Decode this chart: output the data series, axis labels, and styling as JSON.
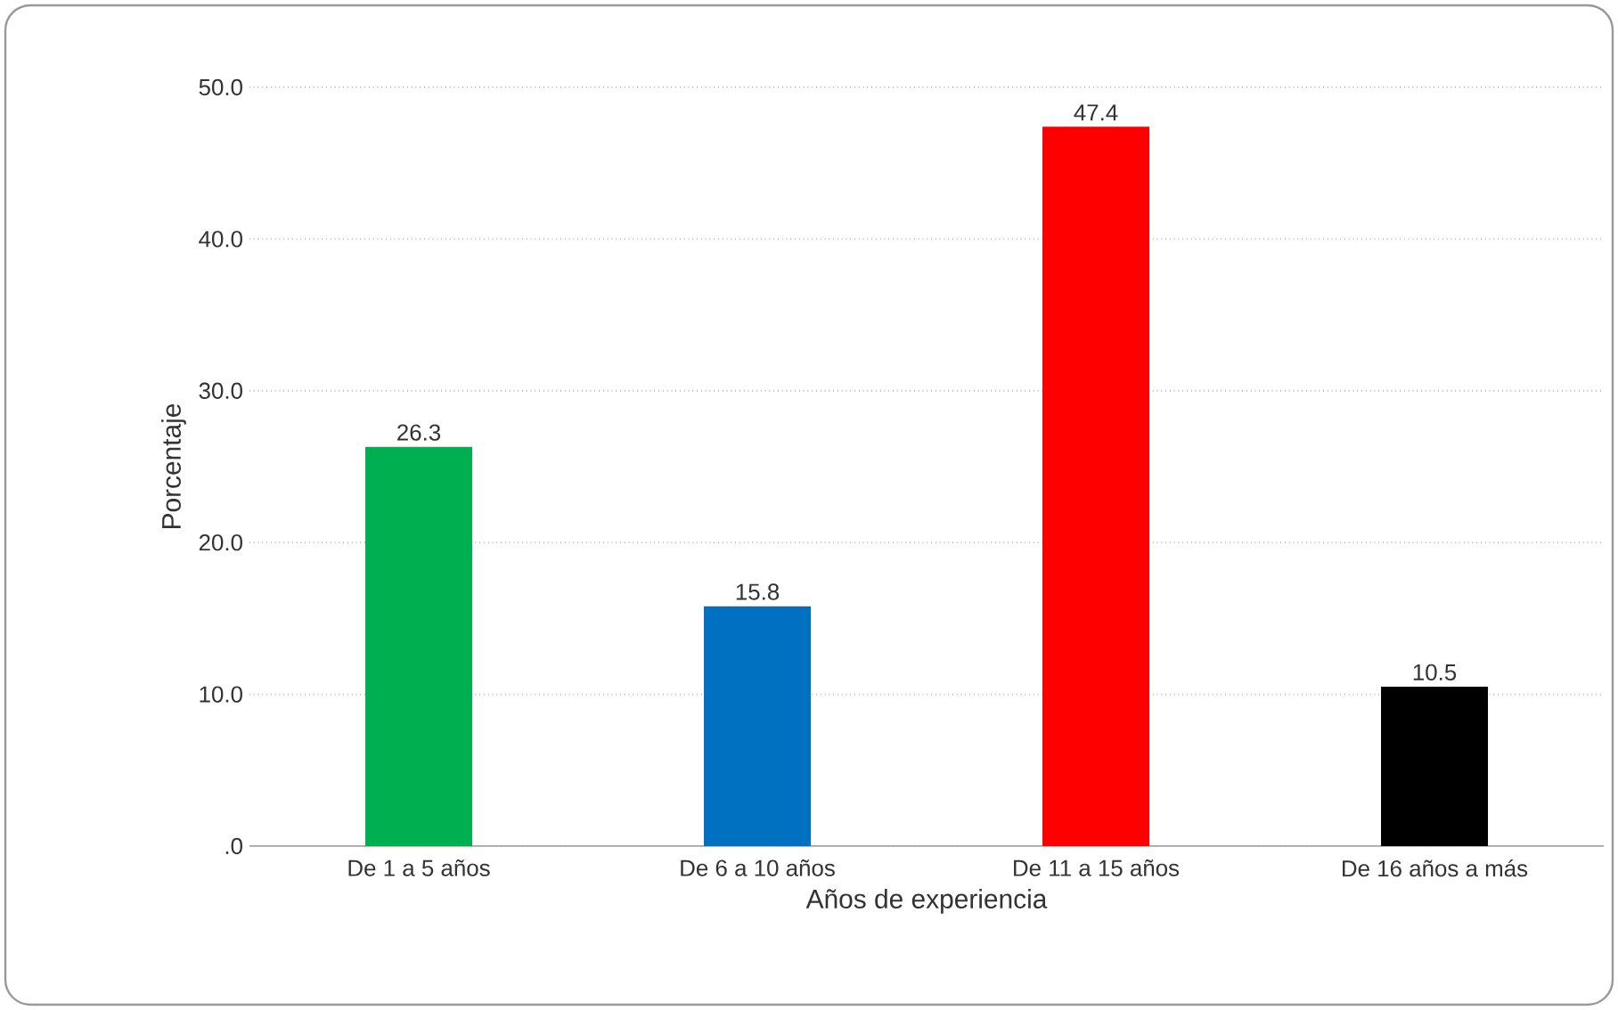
{
  "chart_data": {
    "type": "bar",
    "xlabel": "Años de experiencia",
    "ylabel": "Porcentaje",
    "categories": [
      "De 1 a 5 años",
      "De 6 a 10 años",
      "De 11 a 15 años",
      "De 16 años a más"
    ],
    "values": [
      26.3,
      15.8,
      47.4,
      10.5
    ],
    "colors": [
      "#00b050",
      "#0070c0",
      "#ff0000",
      "#000000"
    ],
    "ylim": [
      0,
      50
    ],
    "yticks": [
      {
        "value": 0,
        "label": ".0"
      },
      {
        "value": 10,
        "label": "10.0"
      },
      {
        "value": 20,
        "label": "20.0"
      },
      {
        "value": 30,
        "label": "30.0"
      },
      {
        "value": 40,
        "label": "40.0"
      },
      {
        "value": 50,
        "label": "50.0"
      }
    ],
    "grid": "y",
    "data_labels": true
  }
}
